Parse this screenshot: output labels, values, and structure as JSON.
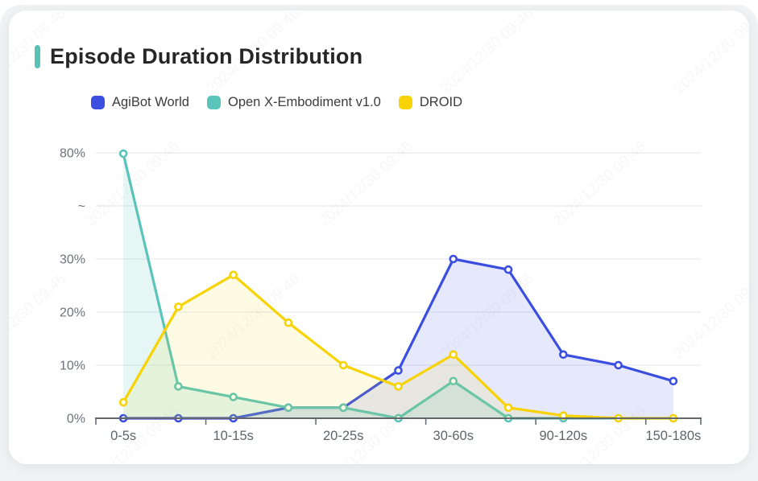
{
  "card": {
    "title": "Episode Duration Distribution",
    "accent_color": "#5bc2b8"
  },
  "legend": [
    {
      "label": "AgiBot World",
      "color": "#3b4ee0"
    },
    {
      "label": "Open X-Embodiment v1.0",
      "color": "#5bc4ba"
    },
    {
      "label": "DROID",
      "color": "#f8d303"
    }
  ],
  "watermark": {
    "text": "2024/12/30 09:46"
  },
  "chart_data": {
    "type": "line",
    "title": "Episode Duration Distribution",
    "n_points": 11,
    "x_tick_labels": [
      "0-5s",
      "10-15s",
      "20-25s",
      "30-60s",
      "90-120s",
      "150-180s"
    ],
    "x_label_point_indices": [
      0,
      2,
      4,
      6,
      8,
      10
    ],
    "y_axis": {
      "ticks": [
        "0%",
        "10%",
        "20%",
        "30%",
        "~",
        "80%"
      ],
      "broken_axis": true,
      "break_between": [
        "30%",
        "80%"
      ],
      "unit": "percent"
    },
    "grid": true,
    "legend_position": "top-left",
    "area_fill": true,
    "markers": "hollow-circle",
    "series": [
      {
        "name": "AgiBot World",
        "color": "#3b4ee0",
        "fill": "rgba(59,78,224,0.13)",
        "values": [
          0,
          0,
          0,
          2,
          2,
          9,
          30,
          28,
          12,
          10,
          7
        ]
      },
      {
        "name": "Open X-Embodiment v1.0",
        "color": "#5bc4ba",
        "fill": "rgba(91,196,186,0.16)",
        "values": [
          79.6,
          6,
          4,
          2,
          2,
          0,
          7,
          0,
          0,
          0,
          0
        ]
      },
      {
        "name": "DROID",
        "color": "#f8d303",
        "fill": "rgba(248,211,3,0.10)",
        "values": [
          3,
          21,
          27,
          18,
          10,
          6,
          12,
          2,
          0.5,
          0,
          0
        ]
      }
    ]
  }
}
